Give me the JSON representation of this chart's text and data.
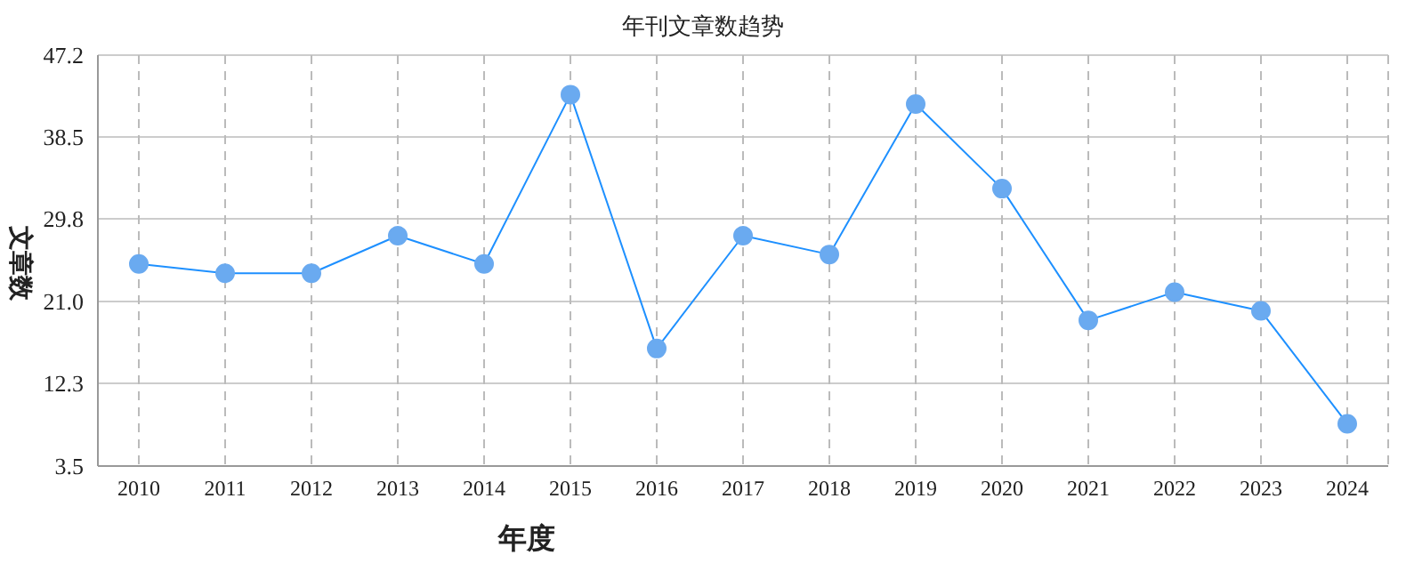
{
  "chart_data": {
    "type": "line",
    "title": "年刊文章数趋势",
    "xlabel": "年度",
    "ylabel": "文章数",
    "categories": [
      "2010",
      "2011",
      "2012",
      "2013",
      "2014",
      "2015",
      "2016",
      "2017",
      "2018",
      "2019",
      "2020",
      "2021",
      "2022",
      "2023",
      "2024"
    ],
    "series": [
      {
        "color": "#1e90ff",
        "values": [
          25,
          24,
          24,
          28,
          25,
          43,
          16,
          28,
          26,
          42,
          33,
          19,
          22,
          20,
          8
        ]
      }
    ],
    "ylim": [
      3.5,
      47.2
    ],
    "yticks": [
      3.5,
      12.3,
      {
        "value": 21,
        "label": "21.0"
      },
      29.8,
      38.5,
      47.2
    ],
    "grid": true,
    "marker": "circle",
    "line_style": "solid",
    "legend": false
  }
}
